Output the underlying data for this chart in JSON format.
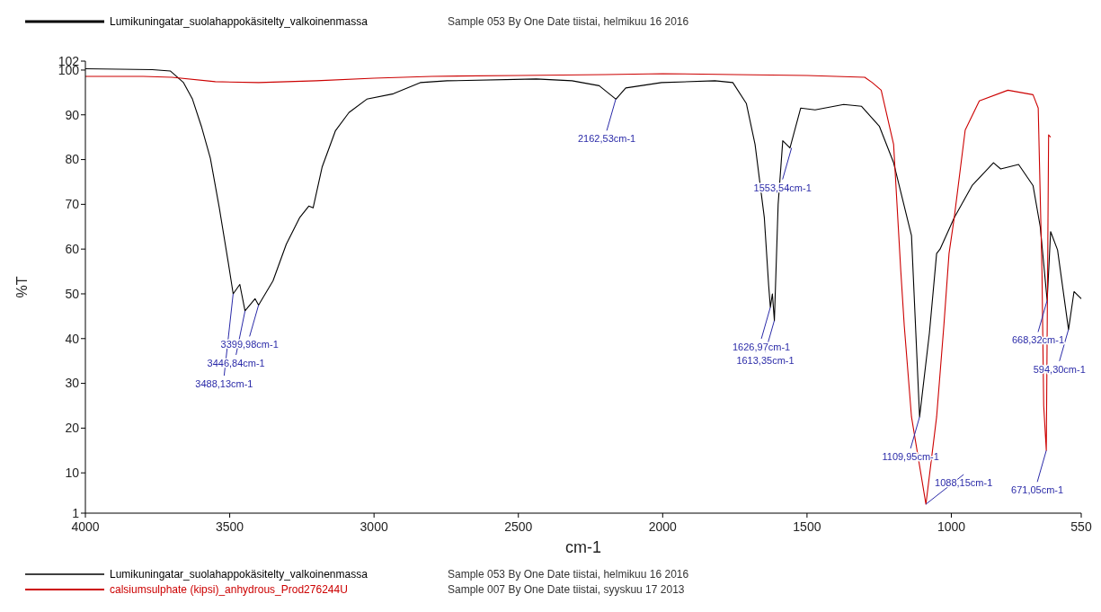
{
  "chart_data": {
    "type": "line",
    "xlabel": "cm-1",
    "ylabel": "%T",
    "xlim": [
      4000,
      550
    ],
    "xticks": [
      4000,
      3500,
      3000,
      2500,
      2000,
      1500,
      1000,
      550
    ],
    "ylim": [
      1,
      102
    ],
    "yticks": [
      1,
      10,
      20,
      30,
      40,
      50,
      60,
      70,
      80,
      90,
      100,
      102
    ],
    "grid": false,
    "legend": "bottom",
    "marker": "none",
    "line_style": "solid",
    "series": [
      {
        "name": "Lumikuningatar_suolahappokäsitelty_valkoinenmassa",
        "color": "#000000",
        "x": [
          4000,
          3768,
          3706,
          3660,
          3629,
          3598,
          3567,
          3536,
          3505,
          3488,
          3465,
          3447,
          3412,
          3400,
          3350,
          3304,
          3257,
          3226,
          3211,
          3180,
          3134,
          3087,
          3025,
          2933,
          2840,
          2747,
          2438,
          2314,
          2220,
          2162,
          2128,
          2004,
          1819,
          1757,
          1710,
          1680,
          1648,
          1633,
          1627,
          1620,
          1613,
          1600,
          1584,
          1559,
          1522,
          1472,
          1373,
          1311,
          1249,
          1200,
          1138,
          1110,
          1076,
          1051,
          1039,
          990,
          928,
          854,
          829,
          804,
          767,
          717,
          692,
          668,
          656,
          632,
          594,
          575,
          550
        ],
        "values": [
          100.3,
          100.1,
          99.8,
          97.2,
          93.5,
          87.4,
          80.3,
          69.2,
          57.0,
          50.0,
          52.1,
          46.2,
          48.9,
          47.5,
          52.9,
          61.1,
          67.1,
          69.6,
          69.2,
          78.3,
          86.4,
          90.5,
          93.5,
          94.7,
          97.2,
          97.6,
          98.0,
          97.6,
          96.5,
          93.5,
          96.0,
          97.2,
          97.6,
          97.2,
          92.5,
          83.4,
          67.1,
          52.0,
          47.0,
          50.0,
          44.0,
          70.0,
          84.2,
          82.6,
          91.5,
          91.1,
          92.3,
          91.9,
          87.4,
          79.3,
          63.0,
          22.5,
          41.2,
          59.0,
          60.0,
          67.0,
          74.2,
          79.3,
          77.9,
          78.3,
          78.9,
          74.2,
          65.0,
          48.5,
          63.9,
          59.8,
          42.0,
          50.5,
          48.9
        ]
      },
      {
        "name": "calsiumsulphate (kipsi)_anhydrous_Prod276244U",
        "color": "#cc0000",
        "x": [
          4000,
          3800,
          3700,
          3550,
          3400,
          3200,
          3000,
          2800,
          2500,
          2200,
          2000,
          1750,
          1500,
          1300,
          1274,
          1243,
          1200,
          1175,
          1163,
          1138,
          1088,
          1051,
          1026,
          1008,
          990,
          952,
          903,
          804,
          717,
          699,
          686,
          680,
          671,
          663,
          656
        ],
        "values": [
          98.6,
          98.6,
          98.4,
          97.4,
          97.2,
          97.6,
          98.2,
          98.6,
          98.8,
          99.0,
          99.2,
          99.0,
          98.8,
          98.4,
          97.2,
          95.5,
          83.4,
          55.0,
          42.8,
          22.5,
          3.0,
          22.5,
          42.8,
          59.0,
          67.0,
          86.6,
          93.1,
          95.5,
          94.5,
          91.5,
          55.0,
          25.0,
          15.0,
          85.5,
          85.0
        ]
      }
    ],
    "annotations": [
      "Sample 053 By One Date tiistai, helmikuu 16 2016",
      "Sample 007 By One Date tiistai, syyskuu 17 2013",
      {
        "text": "3399,98cm-1",
        "x": 3399.98,
        "y": 47.5
      },
      {
        "text": "3446,84cm-1",
        "x": 3446.84,
        "y": 46.2
      },
      {
        "text": "3488,13cm-1",
        "x": 3488.13,
        "y": 50
      },
      {
        "text": "2162,53cm-1",
        "x": 2162.53,
        "y": 93.5
      },
      {
        "text": "1553,54cm-1",
        "x": 1553.54,
        "y": 82.6
      },
      {
        "text": "1626,97cm-1",
        "x": 1626.97,
        "y": 47
      },
      {
        "text": "1613,35cm-1",
        "x": 1613.35,
        "y": 44
      },
      {
        "text": "1109,95cm-1",
        "x": 1109.95,
        "y": 22.5
      },
      {
        "text": "1088,15cm-1",
        "x": 1088.15,
        "y": 3
      },
      {
        "text": "668,32cm-1",
        "x": 668.32,
        "y": 48.5
      },
      {
        "text": "594,30cm-1",
        "x": 594.3,
        "y": 42
      },
      {
        "text": "671,05cm-1",
        "x": 671.05,
        "y": 15
      }
    ]
  }
}
